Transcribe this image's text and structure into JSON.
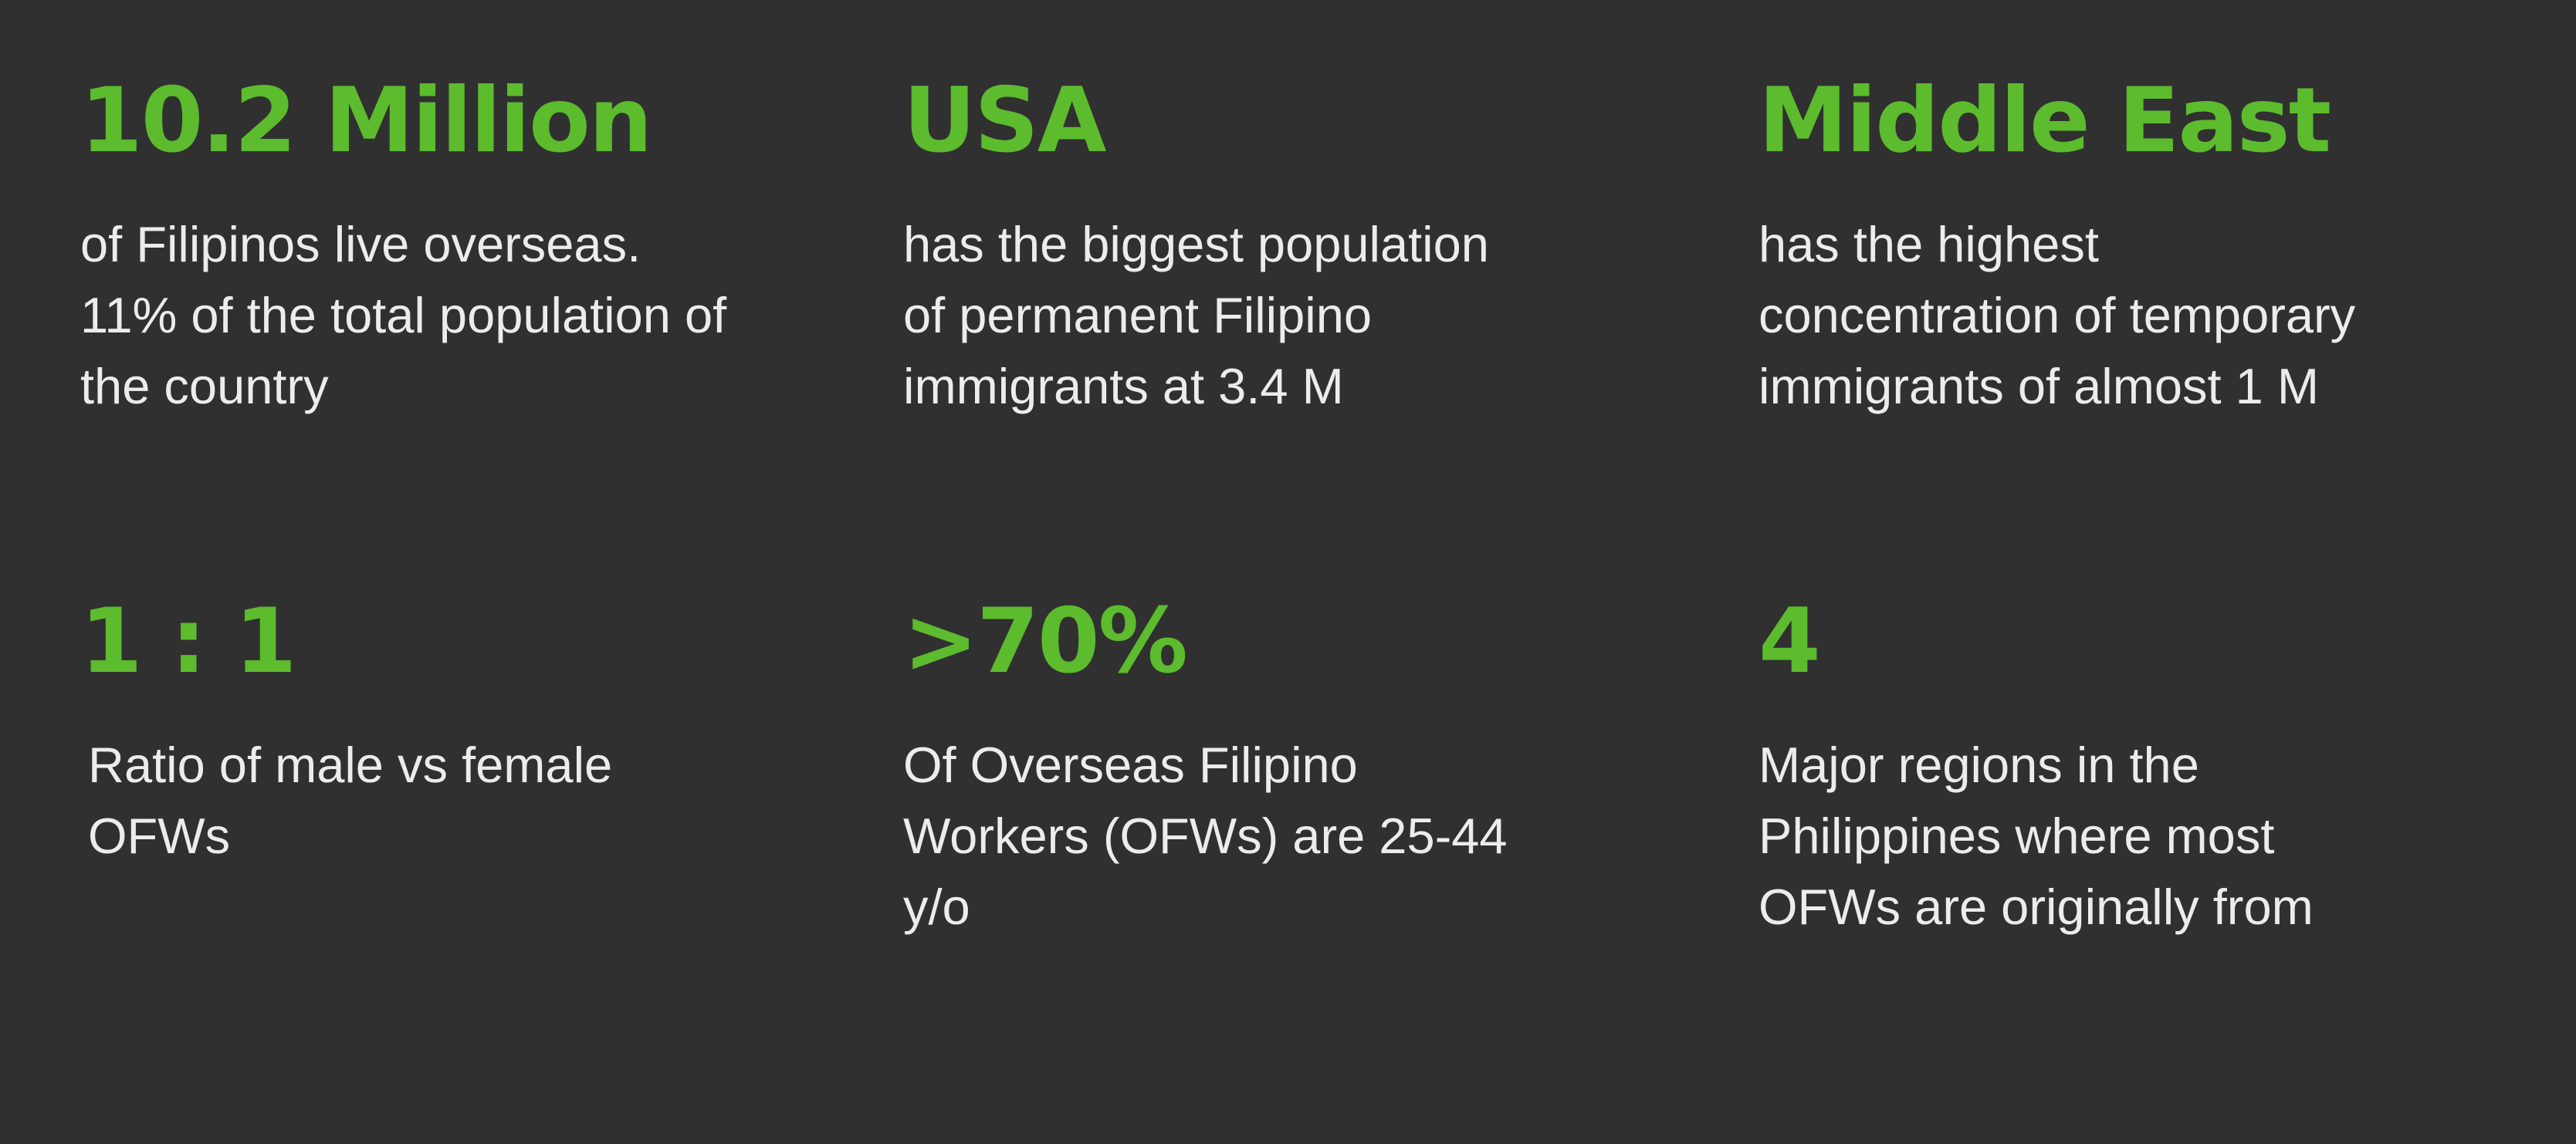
{
  "stats": [
    {
      "value": "10.2 Million",
      "lines": [
        "of  Filipinos live overseas.",
        "11% of the total population of",
        "the country"
      ]
    },
    {
      "value": "USA",
      "lines": [
        "has the biggest population",
        "of permanent Filipino",
        "immigrants at 3.4 M"
      ]
    },
    {
      "value": "Middle East",
      "lines": [
        "has the highest",
        "concentration of temporary",
        "immigrants of almost 1 M"
      ]
    },
    {
      "value": "1 : 1",
      "lines": [
        "Ratio of male vs female",
        "OFWs"
      ]
    },
    {
      "value": ">70%",
      "lines": [
        "Of Overseas Filipino",
        "Workers (OFWs) are 25-44",
        "y/o"
      ]
    },
    {
      "value": "4",
      "lines": [
        "Major regions in the",
        "Philippines where most",
        "OFWs are originally from"
      ]
    }
  ],
  "colors": {
    "background": "#303030",
    "accent": "#5dbb2e",
    "text": "#ececec"
  }
}
